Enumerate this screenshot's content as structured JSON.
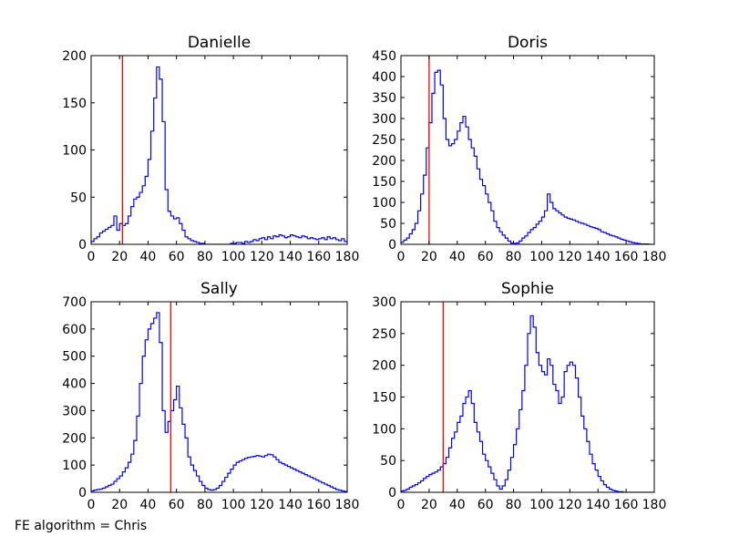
{
  "figure": {
    "footer": "FE algorithm = Chris",
    "style": {
      "hist_color": "#0000ff",
      "marker_color": "#ff0000"
    }
  },
  "chart_data": [
    {
      "type": "line",
      "step": true,
      "title": "Danielle",
      "xlim": [
        0,
        180
      ],
      "ylim": [
        0,
        200
      ],
      "xticks": [
        0,
        20,
        40,
        60,
        80,
        100,
        120,
        140,
        160,
        180
      ],
      "yticks": [
        0,
        50,
        100,
        150,
        200
      ],
      "vline": 22,
      "x": [
        0,
        2,
        4,
        6,
        8,
        10,
        12,
        14,
        16,
        18,
        20,
        22,
        24,
        26,
        28,
        30,
        32,
        34,
        36,
        38,
        40,
        42,
        44,
        46,
        48,
        50,
        52,
        54,
        56,
        58,
        60,
        62,
        64,
        66,
        68,
        70,
        72,
        74,
        76,
        78,
        80,
        82,
        84,
        86,
        88,
        90,
        92,
        94,
        96,
        98,
        100,
        102,
        104,
        106,
        108,
        110,
        112,
        114,
        116,
        118,
        120,
        122,
        124,
        126,
        128,
        130,
        132,
        134,
        136,
        138,
        140,
        142,
        144,
        146,
        148,
        150,
        152,
        154,
        156,
        158,
        160,
        162,
        164,
        166,
        168,
        170,
        172,
        174,
        176,
        178
      ],
      "values": [
        3,
        6,
        8,
        12,
        14,
        16,
        18,
        20,
        30,
        15,
        22,
        20,
        22,
        30,
        40,
        48,
        50,
        55,
        62,
        72,
        90,
        120,
        155,
        188,
        175,
        130,
        58,
        35,
        30,
        27,
        28,
        22,
        15,
        8,
        6,
        4,
        3,
        2,
        1,
        1,
        0,
        0,
        0,
        0,
        0,
        0,
        0,
        0,
        0,
        1,
        1,
        2,
        2,
        1,
        3,
        2,
        3,
        5,
        4,
        6,
        7,
        5,
        8,
        6,
        9,
        8,
        10,
        9,
        7,
        8,
        10,
        9,
        8,
        7,
        9,
        8,
        6,
        7,
        6,
        5,
        6,
        7,
        5,
        8,
        6,
        7,
        5,
        4,
        6,
        3
      ]
    },
    {
      "type": "line",
      "step": true,
      "title": "Doris",
      "xlim": [
        0,
        180
      ],
      "ylim": [
        0,
        450
      ],
      "xticks": [
        0,
        20,
        40,
        60,
        80,
        100,
        120,
        140,
        160,
        180
      ],
      "yticks": [
        0,
        50,
        100,
        150,
        200,
        250,
        300,
        350,
        400,
        450
      ],
      "vline": 20,
      "x": [
        0,
        2,
        4,
        6,
        8,
        10,
        12,
        14,
        16,
        18,
        20,
        22,
        24,
        26,
        28,
        30,
        32,
        34,
        36,
        38,
        40,
        42,
        44,
        46,
        48,
        50,
        52,
        54,
        56,
        58,
        60,
        62,
        64,
        66,
        68,
        70,
        72,
        74,
        76,
        78,
        80,
        82,
        84,
        86,
        88,
        90,
        92,
        94,
        96,
        98,
        100,
        102,
        104,
        106,
        108,
        110,
        112,
        114,
        116,
        118,
        120,
        122,
        124,
        126,
        128,
        130,
        132,
        134,
        136,
        138,
        140,
        142,
        144,
        146,
        148,
        150,
        152,
        154,
        156,
        158,
        160,
        162,
        164,
        166,
        168,
        170,
        172,
        174,
        176,
        178
      ],
      "values": [
        5,
        10,
        15,
        25,
        35,
        50,
        80,
        120,
        165,
        230,
        290,
        360,
        410,
        415,
        380,
        300,
        250,
        235,
        240,
        250,
        270,
        290,
        305,
        280,
        250,
        230,
        210,
        180,
        155,
        140,
        120,
        100,
        80,
        55,
        40,
        30,
        22,
        15,
        8,
        3,
        2,
        3,
        8,
        15,
        20,
        28,
        35,
        40,
        48,
        55,
        65,
        80,
        120,
        100,
        85,
        80,
        75,
        70,
        65,
        62,
        60,
        58,
        55,
        52,
        50,
        48,
        45,
        42,
        40,
        38,
        35,
        30,
        28,
        25,
        22,
        20,
        18,
        15,
        12,
        10,
        8,
        6,
        4,
        3,
        2,
        1,
        1,
        1,
        0,
        0
      ]
    },
    {
      "type": "line",
      "step": true,
      "title": "Sally",
      "xlim": [
        0,
        180
      ],
      "ylim": [
        0,
        700
      ],
      "xticks": [
        0,
        20,
        40,
        60,
        80,
        100,
        120,
        140,
        160,
        180
      ],
      "yticks": [
        0,
        100,
        200,
        300,
        400,
        500,
        600,
        700
      ],
      "vline": 56,
      "x": [
        0,
        2,
        4,
        6,
        8,
        10,
        12,
        14,
        16,
        18,
        20,
        22,
        24,
        26,
        28,
        30,
        32,
        34,
        36,
        38,
        40,
        42,
        44,
        46,
        48,
        50,
        52,
        54,
        56,
        58,
        60,
        62,
        64,
        66,
        68,
        70,
        72,
        74,
        76,
        78,
        80,
        82,
        84,
        86,
        88,
        90,
        92,
        94,
        96,
        98,
        100,
        102,
        104,
        106,
        108,
        110,
        112,
        114,
        116,
        118,
        120,
        122,
        124,
        126,
        128,
        130,
        132,
        134,
        136,
        138,
        140,
        142,
        144,
        146,
        148,
        150,
        152,
        154,
        156,
        158,
        160,
        162,
        164,
        166,
        168,
        170,
        172,
        174,
        176,
        178
      ],
      "values": [
        5,
        8,
        10,
        12,
        15,
        20,
        25,
        30,
        40,
        50,
        60,
        75,
        90,
        110,
        140,
        190,
        280,
        400,
        500,
        560,
        600,
        620,
        640,
        660,
        550,
        300,
        220,
        260,
        300,
        340,
        390,
        310,
        250,
        200,
        130,
        100,
        80,
        60,
        40,
        25,
        15,
        10,
        8,
        10,
        15,
        25,
        40,
        55,
        70,
        85,
        100,
        110,
        115,
        120,
        125,
        128,
        130,
        132,
        135,
        133,
        130,
        135,
        140,
        138,
        130,
        120,
        110,
        105,
        100,
        95,
        90,
        85,
        80,
        75,
        70,
        65,
        60,
        55,
        50,
        45,
        40,
        35,
        30,
        25,
        20,
        15,
        10,
        8,
        5,
        3
      ]
    },
    {
      "type": "line",
      "step": true,
      "title": "Sophie",
      "xlim": [
        0,
        180
      ],
      "ylim": [
        0,
        300
      ],
      "xticks": [
        0,
        20,
        40,
        60,
        80,
        100,
        120,
        140,
        160,
        180
      ],
      "yticks": [
        0,
        50,
        100,
        150,
        200,
        250,
        300
      ],
      "vline": 30,
      "x": [
        0,
        2,
        4,
        6,
        8,
        10,
        12,
        14,
        16,
        18,
        20,
        22,
        24,
        26,
        28,
        30,
        32,
        34,
        36,
        38,
        40,
        42,
        44,
        46,
        48,
        50,
        52,
        54,
        56,
        58,
        60,
        62,
        64,
        66,
        68,
        70,
        72,
        74,
        76,
        78,
        80,
        82,
        84,
        86,
        88,
        90,
        92,
        94,
        96,
        98,
        100,
        102,
        104,
        106,
        108,
        110,
        112,
        114,
        116,
        118,
        120,
        122,
        124,
        126,
        128,
        130,
        132,
        134,
        136,
        138,
        140,
        142,
        144,
        146,
        148,
        150,
        152,
        154,
        156,
        158,
        160,
        162,
        164,
        166,
        168,
        170,
        172,
        174,
        176,
        178
      ],
      "values": [
        2,
        3,
        5,
        8,
        10,
        12,
        15,
        18,
        22,
        25,
        28,
        30,
        32,
        35,
        40,
        45,
        55,
        70,
        85,
        95,
        110,
        120,
        140,
        150,
        160,
        140,
        110,
        95,
        80,
        60,
        50,
        40,
        30,
        20,
        10,
        5,
        10,
        20,
        35,
        55,
        75,
        100,
        130,
        160,
        200,
        250,
        278,
        260,
        220,
        200,
        190,
        185,
        210,
        200,
        170,
        160,
        140,
        150,
        190,
        200,
        205,
        200,
        180,
        150,
        120,
        100,
        80,
        60,
        45,
        35,
        25,
        18,
        12,
        8,
        5,
        3,
        2,
        1,
        1,
        0,
        0,
        0,
        0,
        0,
        0,
        0,
        0,
        0,
        0,
        0
      ]
    }
  ]
}
